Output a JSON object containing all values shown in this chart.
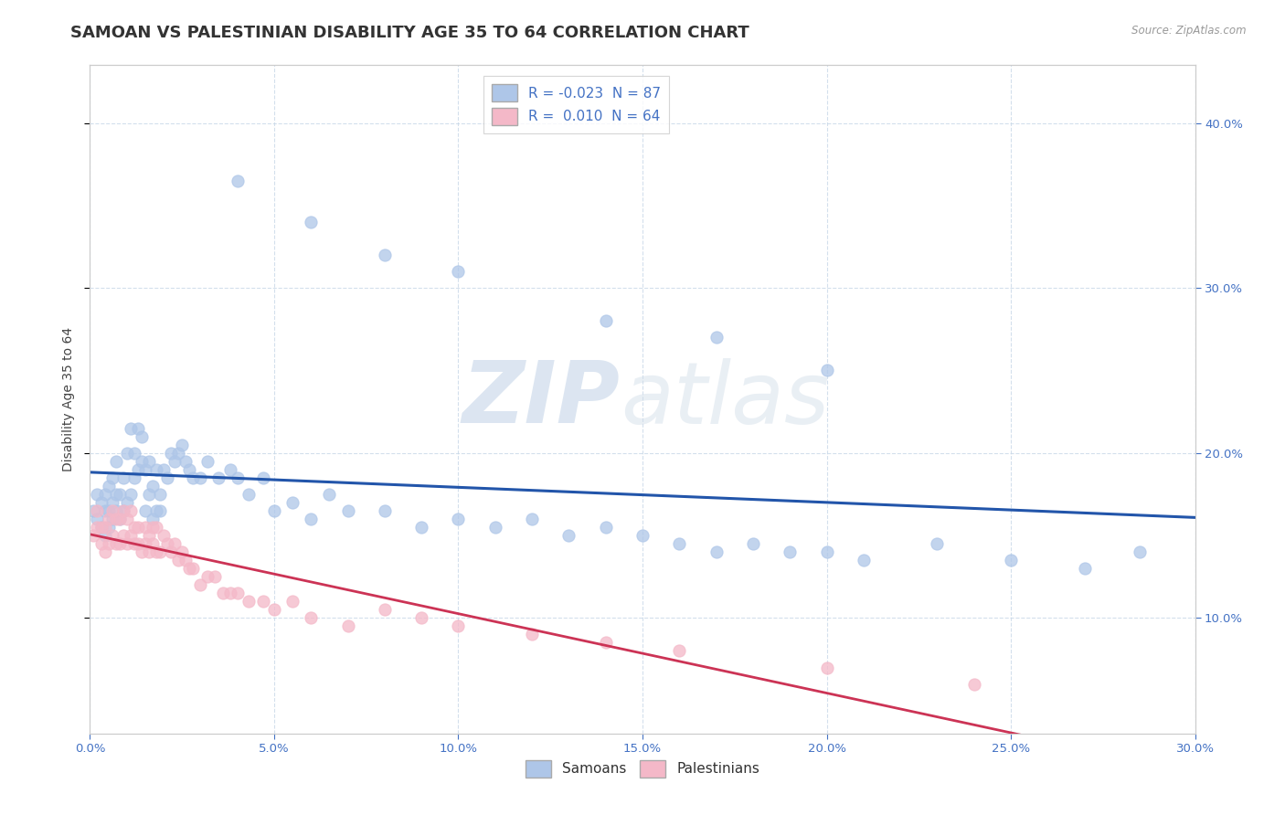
{
  "title": "SAMOAN VS PALESTINIAN DISABILITY AGE 35 TO 64 CORRELATION CHART",
  "source": "Source: ZipAtlas.com",
  "xlim": [
    0.0,
    0.3
  ],
  "ylim": [
    0.03,
    0.435
  ],
  "samoans_R": -0.023,
  "samoans_N": 87,
  "palestinians_R": 0.01,
  "palestinians_N": 64,
  "samoans_color": "#aec6e8",
  "palestinians_color": "#f4b8c8",
  "samoans_line_color": "#2255aa",
  "palestinians_line_color": "#cc3355",
  "samoans_x": [
    0.001,
    0.002,
    0.002,
    0.003,
    0.003,
    0.004,
    0.004,
    0.004,
    0.005,
    0.005,
    0.005,
    0.006,
    0.006,
    0.006,
    0.007,
    0.007,
    0.007,
    0.008,
    0.008,
    0.009,
    0.009,
    0.01,
    0.01,
    0.011,
    0.011,
    0.012,
    0.012,
    0.013,
    0.013,
    0.014,
    0.014,
    0.015,
    0.015,
    0.016,
    0.016,
    0.017,
    0.017,
    0.018,
    0.018,
    0.019,
    0.019,
    0.02,
    0.021,
    0.022,
    0.023,
    0.024,
    0.025,
    0.026,
    0.027,
    0.028,
    0.03,
    0.032,
    0.035,
    0.038,
    0.04,
    0.043,
    0.047,
    0.05,
    0.055,
    0.06,
    0.065,
    0.07,
    0.08,
    0.09,
    0.1,
    0.11,
    0.12,
    0.13,
    0.14,
    0.15,
    0.16,
    0.17,
    0.18,
    0.19,
    0.2,
    0.21,
    0.23,
    0.25,
    0.27,
    0.285,
    0.04,
    0.06,
    0.08,
    0.1,
    0.14,
    0.17,
    0.2
  ],
  "samoans_y": [
    0.165,
    0.16,
    0.175,
    0.155,
    0.17,
    0.15,
    0.165,
    0.175,
    0.155,
    0.165,
    0.18,
    0.16,
    0.17,
    0.185,
    0.165,
    0.175,
    0.195,
    0.16,
    0.175,
    0.165,
    0.185,
    0.17,
    0.2,
    0.175,
    0.215,
    0.185,
    0.2,
    0.19,
    0.215,
    0.195,
    0.21,
    0.165,
    0.19,
    0.175,
    0.195,
    0.16,
    0.18,
    0.165,
    0.19,
    0.165,
    0.175,
    0.19,
    0.185,
    0.2,
    0.195,
    0.2,
    0.205,
    0.195,
    0.19,
    0.185,
    0.185,
    0.195,
    0.185,
    0.19,
    0.185,
    0.175,
    0.185,
    0.165,
    0.17,
    0.16,
    0.175,
    0.165,
    0.165,
    0.155,
    0.16,
    0.155,
    0.16,
    0.15,
    0.155,
    0.15,
    0.145,
    0.14,
    0.145,
    0.14,
    0.14,
    0.135,
    0.145,
    0.135,
    0.13,
    0.14,
    0.365,
    0.34,
    0.32,
    0.31,
    0.28,
    0.27,
    0.25
  ],
  "palestinians_x": [
    0.001,
    0.002,
    0.002,
    0.003,
    0.003,
    0.004,
    0.004,
    0.005,
    0.005,
    0.006,
    0.006,
    0.007,
    0.007,
    0.008,
    0.008,
    0.009,
    0.009,
    0.01,
    0.01,
    0.011,
    0.011,
    0.012,
    0.012,
    0.013,
    0.013,
    0.014,
    0.015,
    0.015,
    0.016,
    0.016,
    0.017,
    0.017,
    0.018,
    0.018,
    0.019,
    0.02,
    0.021,
    0.022,
    0.023,
    0.024,
    0.025,
    0.026,
    0.027,
    0.028,
    0.03,
    0.032,
    0.034,
    0.036,
    0.038,
    0.04,
    0.043,
    0.047,
    0.05,
    0.055,
    0.06,
    0.07,
    0.08,
    0.09,
    0.1,
    0.12,
    0.14,
    0.16,
    0.2,
    0.24
  ],
  "palestinians_y": [
    0.15,
    0.155,
    0.165,
    0.145,
    0.155,
    0.14,
    0.155,
    0.145,
    0.16,
    0.15,
    0.165,
    0.145,
    0.16,
    0.145,
    0.16,
    0.15,
    0.165,
    0.145,
    0.16,
    0.15,
    0.165,
    0.145,
    0.155,
    0.145,
    0.155,
    0.14,
    0.145,
    0.155,
    0.14,
    0.15,
    0.145,
    0.155,
    0.14,
    0.155,
    0.14,
    0.15,
    0.145,
    0.14,
    0.145,
    0.135,
    0.14,
    0.135,
    0.13,
    0.13,
    0.12,
    0.125,
    0.125,
    0.115,
    0.115,
    0.115,
    0.11,
    0.11,
    0.105,
    0.11,
    0.1,
    0.095,
    0.105,
    0.1,
    0.095,
    0.09,
    0.085,
    0.08,
    0.07,
    0.06
  ],
  "watermark_zip": "ZIP",
  "watermark_atlas": "atlas",
  "background_color": "#ffffff",
  "grid_color": "#c8d8e8",
  "title_fontsize": 13,
  "axis_label_fontsize": 10,
  "tick_fontsize": 9.5,
  "tick_color": "#4472c4"
}
